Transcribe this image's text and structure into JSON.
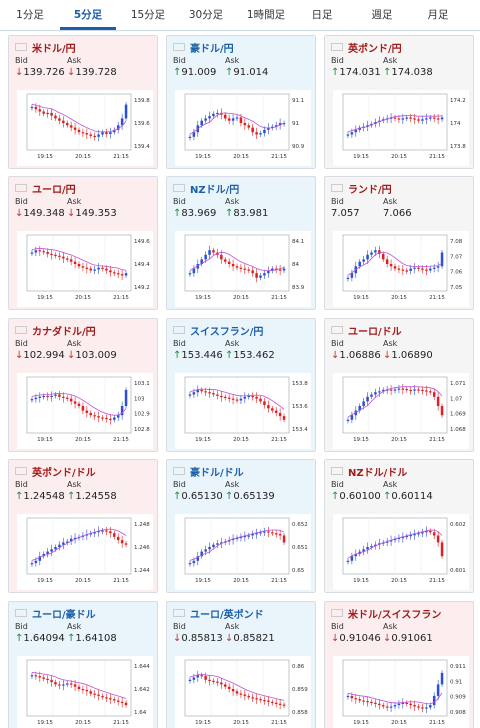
{
  "tabs": [
    {
      "label": "1分足",
      "active": false
    },
    {
      "label": "5分足",
      "active": true
    },
    {
      "label": "15分足",
      "active": false
    },
    {
      "label": "30分足",
      "active": false
    },
    {
      "label": "1時間足",
      "active": false
    },
    {
      "label": "日足",
      "active": false
    },
    {
      "label": "週足",
      "active": false
    },
    {
      "label": "月足",
      "active": false
    }
  ],
  "labels": {
    "bid": "Bid",
    "ask": "Ask"
  },
  "colors": {
    "up_candle": "#2b4fd6",
    "down_candle": "#e02020",
    "ma_line": "#c24fd6",
    "up_arrow": "#1f8a3e",
    "down_arrow": "#c3342b"
  },
  "cards": [
    {
      "pair": "米ドル/円",
      "flag": "us-flag",
      "trend": "down",
      "dir": "down",
      "bid": "139.726",
      "ask": "139.728",
      "chart_data": {
        "type": "candlestick",
        "x_ticks": [
          "19:15",
          "20:15",
          "21:15"
        ],
        "y_ticks": [
          "139.8",
          "139.6",
          "139.4"
        ],
        "ylim": [
          139.3,
          139.9
        ],
        "shape": [
          0.85,
          0.8,
          0.75,
          0.7,
          0.72,
          0.66,
          0.6,
          0.55,
          0.5,
          0.45,
          0.4,
          0.35,
          0.3,
          0.28,
          0.25,
          0.22,
          0.2,
          0.25,
          0.3,
          0.26,
          0.3,
          0.35,
          0.45,
          0.6,
          0.9
        ]
      }
    },
    {
      "pair": "豪ドル/円",
      "flag": "au-flag",
      "trend": "up",
      "dir": "up",
      "bid": "91.009",
      "ask": "91.014",
      "chart_data": {
        "type": "candlestick",
        "x_ticks": [
          "19:15",
          "20:15",
          "21:15"
        ],
        "y_ticks": [
          "91.1",
          "91",
          "90.9"
        ],
        "ylim": [
          90.85,
          91.15
        ],
        "shape": [
          0.2,
          0.3,
          0.45,
          0.55,
          0.6,
          0.65,
          0.7,
          0.72,
          0.68,
          0.6,
          0.55,
          0.6,
          0.62,
          0.5,
          0.45,
          0.4,
          0.3,
          0.25,
          0.28,
          0.35,
          0.4,
          0.42,
          0.45,
          0.5,
          0.5
        ]
      }
    },
    {
      "pair": "英ポンド/円",
      "flag": "uk-flag",
      "trend": "neutral",
      "dir": "up",
      "bid": "174.031",
      "ask": "174.038",
      "chart_data": {
        "type": "candlestick",
        "x_ticks": [
          "19:15",
          "20:15",
          "21:15"
        ],
        "y_ticks": [
          "174.2",
          "174",
          "173.8"
        ],
        "ylim": [
          173.75,
          174.25
        ],
        "shape": [
          0.25,
          0.3,
          0.35,
          0.4,
          0.42,
          0.45,
          0.48,
          0.52,
          0.55,
          0.58,
          0.6,
          0.62,
          0.6,
          0.58,
          0.6,
          0.62,
          0.6,
          0.58,
          0.55,
          0.58,
          0.6,
          0.62,
          0.6,
          0.58,
          0.62
        ]
      }
    },
    {
      "pair": "ユーロ/円",
      "flag": "eu-flag",
      "trend": "down",
      "dir": "down",
      "bid": "149.348",
      "ask": "149.353",
      "chart_data": {
        "type": "candlestick",
        "x_ticks": [
          "19:15",
          "20:15",
          "21:15"
        ],
        "y_ticks": [
          "149.6",
          "149.4",
          "149.2"
        ],
        "ylim": [
          149.15,
          149.65
        ],
        "shape": [
          0.75,
          0.8,
          0.78,
          0.76,
          0.72,
          0.7,
          0.68,
          0.66,
          0.62,
          0.6,
          0.55,
          0.5,
          0.45,
          0.42,
          0.4,
          0.36,
          0.38,
          0.42,
          0.4,
          0.36,
          0.32,
          0.3,
          0.28,
          0.25,
          0.3
        ]
      }
    },
    {
      "pair": "NZドル/円",
      "flag": "nz-flag",
      "trend": "up",
      "dir": "up",
      "bid": "83.969",
      "ask": "83.981",
      "chart_data": {
        "type": "candlestick",
        "x_ticks": [
          "19:15",
          "20:15",
          "21:15"
        ],
        "y_ticks": [
          "84.1",
          "84",
          "83.9"
        ],
        "ylim": [
          83.85,
          84.15
        ],
        "shape": [
          0.3,
          0.4,
          0.5,
          0.6,
          0.7,
          0.8,
          0.75,
          0.7,
          0.6,
          0.55,
          0.5,
          0.45,
          0.42,
          0.4,
          0.38,
          0.36,
          0.3,
          0.2,
          0.25,
          0.3,
          0.35,
          0.4,
          0.38,
          0.36,
          0.4
        ]
      }
    },
    {
      "pair": "ランド/円",
      "flag": "za-flag",
      "trend": "neutral",
      "dir": "none",
      "bid": "7.057",
      "ask": "7.066",
      "chart_data": {
        "type": "candlestick",
        "x_ticks": [
          "19:15",
          "20:15",
          "21:15"
        ],
        "y_ticks": [
          "7.08",
          "7.07",
          "7.06",
          "7.05"
        ],
        "ylim": [
          7.04,
          7.09
        ],
        "shape": [
          0.2,
          0.3,
          0.45,
          0.55,
          0.6,
          0.7,
          0.75,
          0.8,
          0.72,
          0.6,
          0.5,
          0.45,
          0.4,
          0.38,
          0.36,
          0.35,
          0.4,
          0.42,
          0.4,
          0.38,
          0.36,
          0.4,
          0.42,
          0.45,
          0.75
        ]
      }
    },
    {
      "pair": "カナダドル/円",
      "flag": "ca-flag",
      "trend": "down",
      "dir": "down",
      "bid": "102.994",
      "ask": "103.009",
      "chart_data": {
        "type": "candlestick",
        "x_ticks": [
          "19:15",
          "20:15",
          "21:15"
        ],
        "y_ticks": [
          "103.1",
          "103",
          "102.9",
          "102.8"
        ],
        "ylim": [
          102.75,
          103.15
        ],
        "shape": [
          0.65,
          0.68,
          0.7,
          0.72,
          0.7,
          0.72,
          0.75,
          0.7,
          0.68,
          0.66,
          0.6,
          0.55,
          0.5,
          0.4,
          0.35,
          0.3,
          0.28,
          0.25,
          0.24,
          0.22,
          0.2,
          0.25,
          0.3,
          0.5,
          0.85
        ]
      }
    },
    {
      "pair": "スイスフラン/円",
      "flag": "ch-flag",
      "trend": "up",
      "dir": "up",
      "bid": "153.446",
      "ask": "153.462",
      "chart_data": {
        "type": "candlestick",
        "x_ticks": [
          "19:15",
          "20:15",
          "21:15"
        ],
        "y_ticks": [
          "153.8",
          "153.6",
          "153.4"
        ],
        "ylim": [
          153.3,
          153.9
        ],
        "shape": [
          0.75,
          0.8,
          0.85,
          0.82,
          0.8,
          0.78,
          0.75,
          0.72,
          0.7,
          0.68,
          0.66,
          0.64,
          0.62,
          0.66,
          0.7,
          0.72,
          0.7,
          0.66,
          0.6,
          0.52,
          0.45,
          0.4,
          0.35,
          0.28,
          0.2
        ]
      }
    },
    {
      "pair": "ユーロ/ドル",
      "flag": "eu-us-flag",
      "trend": "neutral",
      "dir": "down",
      "bid": "1.06886",
      "ask": "1.06890",
      "chart_data": {
        "type": "candlestick",
        "x_ticks": [
          "19:15",
          "20:15",
          "21:15"
        ],
        "y_ticks": [
          "1.071",
          "1.07",
          "1.069",
          "1.068"
        ],
        "ylim": [
          1.0675,
          1.0715
        ],
        "shape": [
          0.2,
          0.3,
          0.4,
          0.5,
          0.6,
          0.7,
          0.75,
          0.8,
          0.82,
          0.85,
          0.86,
          0.84,
          0.86,
          0.88,
          0.87,
          0.85,
          0.84,
          0.86,
          0.85,
          0.84,
          0.82,
          0.8,
          0.7,
          0.5,
          0.3
        ]
      }
    },
    {
      "pair": "英ポンド/ドル",
      "flag": "uk-us-flag",
      "trend": "down",
      "dir": "up",
      "bid": "1.24548",
      "ask": "1.24558",
      "chart_data": {
        "type": "candlestick",
        "x_ticks": [
          "19:15",
          "20:15",
          "21:15"
        ],
        "y_ticks": [
          "1.248",
          "1.246",
          "1.244"
        ],
        "ylim": [
          1.2425,
          1.2485
        ],
        "shape": [
          0.15,
          0.2,
          0.3,
          0.35,
          0.4,
          0.45,
          0.5,
          0.55,
          0.6,
          0.62,
          0.68,
          0.7,
          0.72,
          0.75,
          0.78,
          0.8,
          0.82,
          0.85,
          0.86,
          0.84,
          0.8,
          0.72,
          0.65,
          0.58,
          0.55
        ]
      }
    },
    {
      "pair": "豪ドル/ドル",
      "flag": "au-us-flag",
      "trend": "up",
      "dir": "up",
      "bid": "0.65130",
      "ask": "0.65139",
      "chart_data": {
        "type": "candlestick",
        "x_ticks": [
          "19:15",
          "20:15",
          "21:15"
        ],
        "y_ticks": [
          "0.652",
          "0.651",
          "0.65"
        ],
        "ylim": [
          0.6497,
          0.6524
        ],
        "shape": [
          0.15,
          0.2,
          0.3,
          0.4,
          0.45,
          0.5,
          0.55,
          0.58,
          0.6,
          0.62,
          0.65,
          0.68,
          0.7,
          0.72,
          0.74,
          0.75,
          0.78,
          0.8,
          0.82,
          0.84,
          0.82,
          0.8,
          0.78,
          0.75,
          0.6
        ]
      }
    },
    {
      "pair": "NZドル/ドル",
      "flag": "nz-us-flag",
      "trend": "neutral",
      "dir": "up",
      "bid": "0.60100",
      "ask": "0.60114",
      "chart_data": {
        "type": "candlestick",
        "x_ticks": [
          "19:15",
          "20:15",
          "21:15"
        ],
        "y_ticks": [
          "0.602",
          "0.601"
        ],
        "ylim": [
          0.6002,
          0.6025
        ],
        "shape": [
          0.2,
          0.3,
          0.35,
          0.4,
          0.45,
          0.5,
          0.52,
          0.55,
          0.58,
          0.6,
          0.62,
          0.65,
          0.68,
          0.7,
          0.72,
          0.74,
          0.76,
          0.78,
          0.8,
          0.82,
          0.85,
          0.82,
          0.75,
          0.6,
          0.3
        ]
      }
    },
    {
      "pair": "ユーロ/豪ドル",
      "flag": "eu-au-flag",
      "trend": "up",
      "dir": "up",
      "bid": "1.64094",
      "ask": "1.64108",
      "chart_data": {
        "type": "candlestick",
        "x_ticks": [
          "19:15",
          "20:15",
          "21:15"
        ],
        "y_ticks": [
          "1.644",
          "1.642",
          "1.64"
        ],
        "ylim": [
          1.6395,
          1.6445
        ],
        "shape": [
          0.8,
          0.78,
          0.75,
          0.72,
          0.7,
          0.65,
          0.6,
          0.58,
          0.6,
          0.62,
          0.6,
          0.55,
          0.5,
          0.48,
          0.45,
          0.4,
          0.38,
          0.35,
          0.32,
          0.3,
          0.28,
          0.25,
          0.22,
          0.2,
          0.15
        ]
      }
    },
    {
      "pair": "ユーロ/英ポンド",
      "flag": "eu-uk-flag",
      "trend": "up",
      "dir": "down",
      "bid": "0.85813",
      "ask": "0.85821",
      "chart_data": {
        "type": "candlestick",
        "x_ticks": [
          "19:15",
          "20:15",
          "21:15"
        ],
        "y_ticks": [
          "0.86",
          "0.859",
          "0.858"
        ],
        "ylim": [
          0.8577,
          0.8604
        ],
        "shape": [
          0.7,
          0.75,
          0.8,
          0.78,
          0.7,
          0.68,
          0.66,
          0.64,
          0.6,
          0.55,
          0.5,
          0.45,
          0.4,
          0.38,
          0.35,
          0.32,
          0.3,
          0.28,
          0.26,
          0.25,
          0.22,
          0.2,
          0.18,
          0.16,
          0.15
        ]
      }
    },
    {
      "pair": "米ドル/スイスフラン",
      "flag": "us-ch-flag",
      "trend": "down",
      "dir": "down",
      "bid": "0.91046",
      "ask": "0.91061",
      "chart_data": {
        "type": "candlestick",
        "x_ticks": [
          "19:15",
          "20:15",
          "21:15"
        ],
        "y_ticks": [
          "0.911",
          "0.91",
          "0.909",
          "0.908"
        ],
        "ylim": [
          0.9075,
          0.9115
        ],
        "shape": [
          0.35,
          0.3,
          0.28,
          0.25,
          0.24,
          0.22,
          0.2,
          0.18,
          0.15,
          0.12,
          0.1,
          0.12,
          0.15,
          0.18,
          0.2,
          0.18,
          0.15,
          0.12,
          0.1,
          0.08,
          0.1,
          0.15,
          0.35,
          0.6,
          0.85
        ]
      }
    }
  ]
}
